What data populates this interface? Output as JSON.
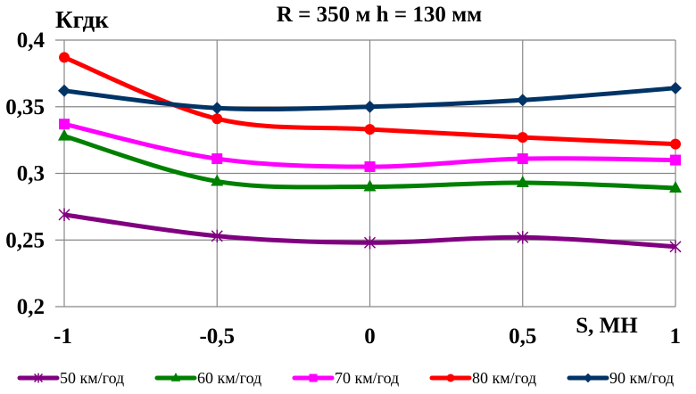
{
  "chart_data": {
    "type": "line",
    "title": "R = 350 м  h = 130 мм",
    "xlabel": "S, МН",
    "ylabel": "Кгдк",
    "x": [
      -1,
      -0.5,
      0,
      0.5,
      1
    ],
    "x_tick_labels": [
      "-1",
      "-0,5",
      "0",
      "0,5",
      "1"
    ],
    "y_tick_values": [
      0.2,
      0.25,
      0.3,
      0.35,
      0.4
    ],
    "y_tick_labels": [
      "0,2",
      "0,25",
      "0,3",
      "0,35",
      "0,4"
    ],
    "xlim": [
      -1,
      1
    ],
    "ylim": [
      0.2,
      0.4
    ],
    "grid": true,
    "legend_position": "bottom",
    "smooth": true,
    "series": [
      {
        "name": "50 км/год",
        "color": "#800080",
        "marker": "star",
        "values": [
          0.269,
          0.253,
          0.248,
          0.252,
          0.245
        ]
      },
      {
        "name": "60 км/год",
        "color": "#008000",
        "marker": "triangle",
        "values": [
          0.328,
          0.294,
          0.29,
          0.293,
          0.289
        ]
      },
      {
        "name": "70 км/год",
        "color": "#FF00FF",
        "marker": "square",
        "values": [
          0.337,
          0.311,
          0.305,
          0.311,
          0.31
        ]
      },
      {
        "name": "80 км/год",
        "color": "#FF0000",
        "marker": "circle",
        "values": [
          0.387,
          0.341,
          0.333,
          0.327,
          0.322
        ]
      },
      {
        "name": "90 км/год",
        "color": "#003366",
        "marker": "diamond",
        "values": [
          0.362,
          0.349,
          0.35,
          0.355,
          0.364
        ]
      }
    ]
  }
}
